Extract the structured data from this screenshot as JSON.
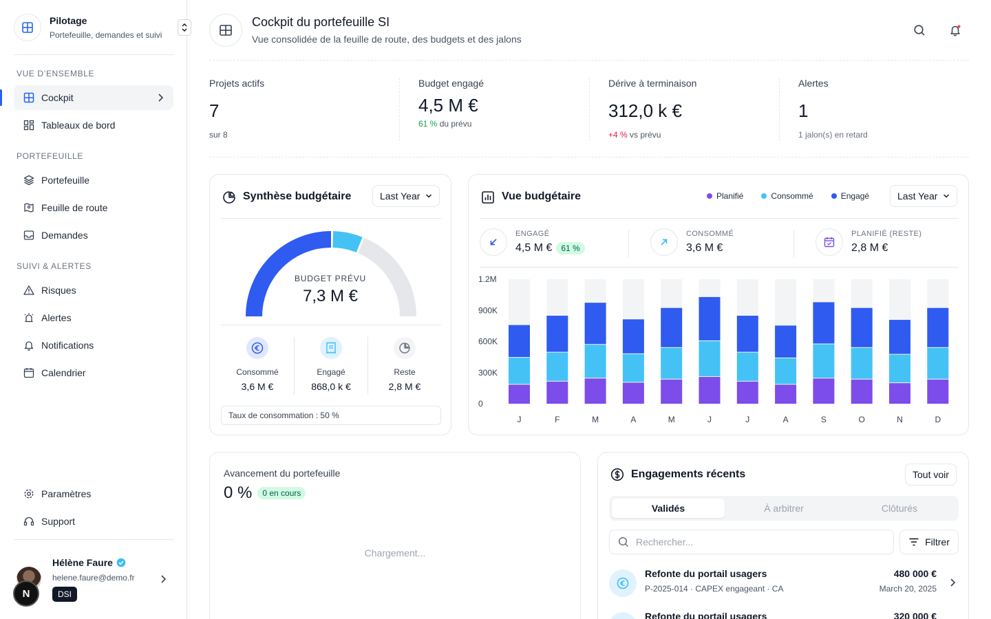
{
  "sidebar": {
    "brand_title": "Pilotage",
    "brand_subtitle": "Portefeuille, demandes et suivi",
    "sections": {
      "overview": "VUE D’ENSEMBLE",
      "portfolio": "PORTEFEUILLE",
      "tracking": "SUIVI & ALERTES"
    },
    "items": {
      "cockpit": "Cockpit",
      "dashboards": "Tableaux de bord",
      "portfolio": "Portefeuille",
      "roadmap": "Feuille de route",
      "requests": "Demandes",
      "risks": "Risques",
      "alerts": "Alertes",
      "notifications": "Notifications",
      "calendar": "Calendrier",
      "settings": "Paramètres",
      "support": "Support"
    },
    "user": {
      "name": "Hélène Faure",
      "email": "helene.faure@demo.fr",
      "role": "DSI",
      "badge": "N"
    }
  },
  "header": {
    "title": "Cockpit du portefeuille SI",
    "subtitle": "Vue consolidée de la feuille de route, des budgets et des jalons"
  },
  "kpis": [
    {
      "label": "Projets actifs",
      "value": "7",
      "foot_prefix": "",
      "foot": "sur 8"
    },
    {
      "label": "Budget engagé",
      "value": "4,5 M €",
      "foot_prefix": "61 %",
      "foot": " du prévu"
    },
    {
      "label": "Dérive à terminaison",
      "value": "312,0 k €",
      "foot_prefix": "+4 %",
      "foot": " vs prévu"
    },
    {
      "label": "Alertes",
      "value": "1",
      "foot_prefix": "",
      "foot": "1 jalon(s) en retard"
    }
  ],
  "budget_synthesis": {
    "title": "Synthèse budgétaire",
    "period": "Last Year",
    "center_label": "BUDGET PRÉVU",
    "center_value": "7,3 M €",
    "gauge": {
      "consumed_fraction": 0.5,
      "engaged_fraction": 0.12
    },
    "stats": [
      {
        "label": "Consommé",
        "value": "3,6 M €"
      },
      {
        "label": "Engagé",
        "value": "868,0 k €"
      },
      {
        "label": "Reste",
        "value": "2,8 M €"
      }
    ],
    "rate": "Taux de consommation : 50 %"
  },
  "budget_view": {
    "title": "Vue budgétaire",
    "period": "Last Year",
    "legend": [
      "Planifié",
      "Consommé",
      "Engagé"
    ],
    "stats": [
      {
        "label": "ENGAGÉ",
        "value": "4,5 M €",
        "badge": "61 %"
      },
      {
        "label": "CONSOMMÉ",
        "value": "3,6 M €"
      },
      {
        "label": "PLANIFIÉ (RESTE)",
        "value": "2,8 M €"
      }
    ]
  },
  "chart_data": {
    "type": "bar",
    "stacked": true,
    "categories": [
      "J",
      "F",
      "M",
      "A",
      "M",
      "J",
      "J",
      "A",
      "S",
      "O",
      "N",
      "D"
    ],
    "y_ticks": [
      "0",
      "300K",
      "600K",
      "900K",
      "1.2M"
    ],
    "y_tick_values": [
      0,
      300000,
      600000,
      900000,
      1200000
    ],
    "ylim": [
      0,
      1200000
    ],
    "series": [
      {
        "name": "Planifié",
        "color": "#7c4dea",
        "values": [
          190000,
          220000,
          250000,
          210000,
          240000,
          265000,
          220000,
          190000,
          250000,
          240000,
          205000,
          240000
        ]
      },
      {
        "name": "Consommé",
        "color": "#45c2f5",
        "values": [
          260000,
          280000,
          325000,
          275000,
          305000,
          345000,
          280000,
          255000,
          330000,
          305000,
          275000,
          305000
        ]
      },
      {
        "name": "Engagé",
        "color": "#2f5bf0",
        "values": [
          315000,
          355000,
          405000,
          335000,
          385000,
          425000,
          355000,
          315000,
          405000,
          385000,
          335000,
          385000
        ]
      }
    ],
    "track_color": "#f3f4f6",
    "grid": false
  },
  "progress": {
    "label": "Avancement du portefeuille",
    "value": "0 %",
    "badge": "0 en cours",
    "loading": "Chargement..."
  },
  "engagements": {
    "title": "Engagements récents",
    "view_all": "Tout voir",
    "tabs": [
      "Validés",
      "À arbitrer",
      "Clôturés"
    ],
    "search_placeholder": "Rechercher...",
    "filter": "Filtrer",
    "rows": [
      {
        "title": "Refonte du portail usagers",
        "meta": "P-2025-014 · CAPEX engageant · CA",
        "amount": "480 000 €",
        "date": "March 20, 2025"
      },
      {
        "title": "Refonte du portail usagers",
        "meta": "",
        "amount": "320 000 €",
        "date": ""
      }
    ]
  },
  "colors": {
    "accent": "#2563eb",
    "planned": "#7c4dea",
    "consumed": "#45c2f5",
    "engaged": "#2f5bf0"
  }
}
